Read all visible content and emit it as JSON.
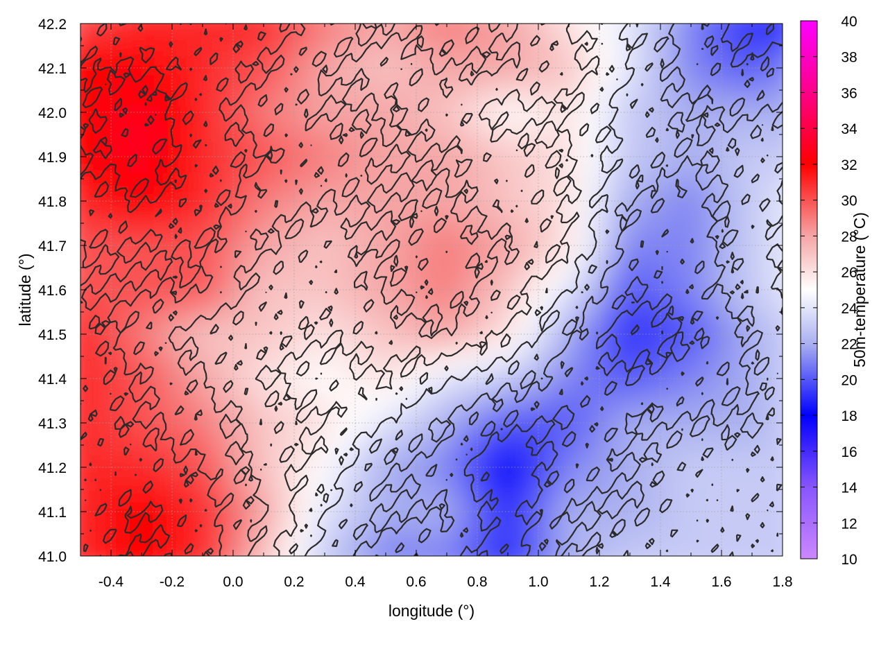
{
  "chart_data": {
    "type": "heatmap",
    "title": "",
    "xlabel": "longitude (°)",
    "ylabel": "latitude (°)",
    "colorbar_label": "50m-temperature (°C)",
    "xlim": [
      -0.5,
      1.8
    ],
    "ylim": [
      41.0,
      42.2
    ],
    "x_ticks": [
      "-0.4",
      "-0.2",
      "0.0",
      "0.2",
      "0.4",
      "0.6",
      "0.8",
      "1.0",
      "1.2",
      "1.4",
      "1.6",
      "1.8"
    ],
    "y_ticks": [
      "41.0",
      "41.1",
      "41.2",
      "41.3",
      "41.4",
      "41.5",
      "41.6",
      "41.7",
      "41.8",
      "41.9",
      "42.0",
      "42.1",
      "42.2"
    ],
    "colorbar_range": [
      10,
      40
    ],
    "colorbar_ticks": [
      "10",
      "12",
      "14",
      "16",
      "18",
      "20",
      "22",
      "24",
      "26",
      "28",
      "30",
      "32",
      "34",
      "36",
      "38",
      "40"
    ],
    "grid": true,
    "contour_lines": true,
    "colormap": [
      {
        "value": 10,
        "color": "#cc88ff"
      },
      {
        "value": 14,
        "color": "#8855ff"
      },
      {
        "value": 18,
        "color": "#0000ff"
      },
      {
        "value": 22,
        "color": "#aab0f0"
      },
      {
        "value": 25,
        "color": "#ffffff"
      },
      {
        "value": 28,
        "color": "#f5a5a5"
      },
      {
        "value": 32,
        "color": "#ff0000"
      },
      {
        "value": 36,
        "color": "#ff0088"
      },
      {
        "value": 40,
        "color": "#ff00ff"
      }
    ],
    "temperature_field": {
      "longitude": [
        -0.5,
        -0.3,
        -0.1,
        0.1,
        0.3,
        0.5,
        0.7,
        0.9,
        1.1,
        1.3,
        1.5,
        1.7,
        1.8
      ],
      "latitude": [
        42.2,
        42.1,
        42.0,
        41.9,
        41.8,
        41.7,
        41.6,
        41.5,
        41.4,
        41.3,
        41.2,
        41.1,
        41.0
      ],
      "values": [
        [
          30,
          31,
          31,
          31,
          29,
          28,
          29,
          28,
          26,
          24,
          21,
          19,
          19
        ],
        [
          32,
          32,
          31,
          30,
          28,
          27,
          28,
          28,
          27,
          24,
          21,
          20,
          21
        ],
        [
          32,
          33,
          31,
          29,
          28,
          28,
          27,
          25,
          26,
          23,
          22,
          22,
          22
        ],
        [
          32,
          33,
          31,
          30,
          29,
          28,
          28,
          27,
          26,
          23,
          22,
          23,
          23
        ],
        [
          31,
          32,
          31,
          29,
          28,
          28,
          28,
          27,
          26,
          22,
          21,
          23,
          24
        ],
        [
          30,
          30,
          30,
          28,
          27,
          28,
          29,
          28,
          26,
          21,
          21,
          23,
          24
        ],
        [
          30,
          30,
          30,
          27,
          27,
          28,
          29,
          27,
          24,
          20,
          21,
          23,
          24
        ],
        [
          31,
          29,
          27,
          27,
          26,
          27,
          28,
          26,
          22,
          19,
          20,
          22,
          23
        ],
        [
          31,
          30,
          28,
          26,
          25,
          26,
          24,
          23,
          21,
          20,
          21,
          22,
          23
        ],
        [
          31,
          30,
          29,
          27,
          26,
          24,
          22,
          20,
          20,
          22,
          22,
          22,
          23
        ],
        [
          31,
          31,
          30,
          27,
          25,
          22,
          21,
          18,
          21,
          22,
          23,
          23,
          23
        ],
        [
          31,
          32,
          31,
          28,
          24,
          22,
          22,
          19,
          22,
          22,
          23,
          23,
          23
        ],
        [
          31,
          32,
          31,
          27,
          23,
          21,
          21,
          19,
          22,
          23,
          23,
          23,
          23
        ]
      ]
    }
  }
}
